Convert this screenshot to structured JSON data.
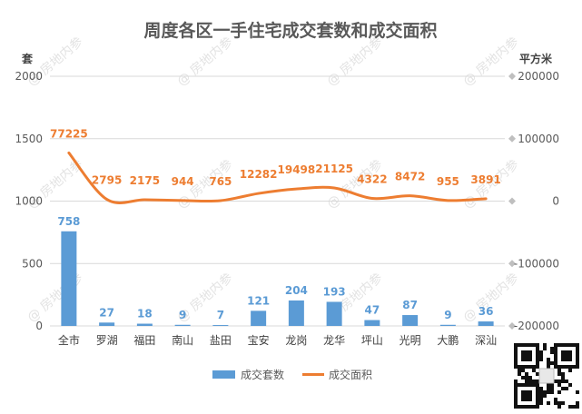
{
  "chart_data": {
    "type": "bar",
    "title": "周度各区一手住宅成交套数和成交面积",
    "categories": [
      "全市",
      "罗湖",
      "福田",
      "南山",
      "盐田",
      "宝安",
      "龙岗",
      "龙华",
      "坪山",
      "光明",
      "大鹏",
      "深汕"
    ],
    "series": [
      {
        "name": "成交套数",
        "type": "bar",
        "axis": "left",
        "color": "#5b9bd5",
        "values": [
          758,
          27,
          18,
          9,
          7,
          121,
          204,
          193,
          47,
          87,
          9,
          36
        ]
      },
      {
        "name": "成交面积",
        "type": "line",
        "axis": "right",
        "color": "#ed7d31",
        "values": [
          77225,
          2795,
          2175,
          944,
          765,
          12282,
          19498,
          21125,
          4322,
          8472,
          955,
          3891
        ]
      }
    ],
    "left_axis": {
      "label": "套",
      "min": 0,
      "max": 2000,
      "ticks": [
        0,
        500,
        1000,
        1500,
        2000
      ]
    },
    "right_axis": {
      "label": "平方米",
      "min": -200000,
      "max": 200000,
      "ticks": [
        -200000,
        -100000,
        0,
        100000,
        200000
      ]
    },
    "grid": true,
    "legend": "bottom"
  },
  "watermark": {
    "text": "@ 房地内参"
  },
  "qr_label": "qr-code"
}
